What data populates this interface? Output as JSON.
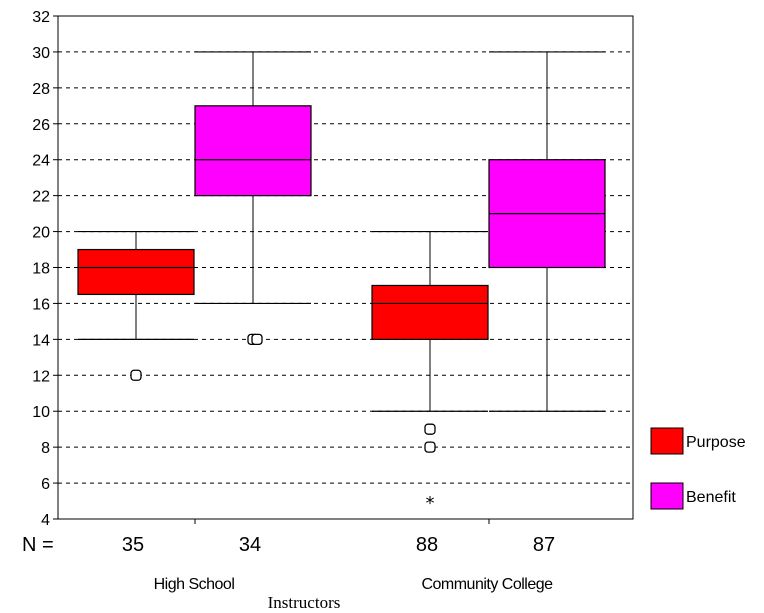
{
  "chart_data": {
    "type": "boxplot",
    "title": "",
    "xlabel": "Instructors",
    "ylabel": "",
    "ylim": [
      4,
      32
    ],
    "yticks": [
      4,
      6,
      8,
      10,
      12,
      14,
      16,
      18,
      20,
      22,
      24,
      26,
      28,
      30,
      32
    ],
    "grid": "horizontal-dashed",
    "legend_position": "right",
    "n_prefix": "N =",
    "groups": [
      {
        "label": "High School"
      },
      {
        "label": "Community College"
      }
    ],
    "series": [
      {
        "name": "Purpose",
        "color": "#ff0000"
      },
      {
        "name": "Benefit",
        "color": "#ff00ff"
      }
    ],
    "boxes": [
      {
        "group": "High School",
        "series": "Purpose",
        "n": "35",
        "whisker_low": 14,
        "q1": 16.5,
        "median": 18,
        "q3": 19,
        "whisker_high": 20,
        "outliers": [
          {
            "value": 12,
            "marker": "circle"
          }
        ]
      },
      {
        "group": "High School",
        "series": "Benefit",
        "n": "34",
        "whisker_low": 16,
        "q1": 22,
        "median": 24,
        "q3": 27,
        "whisker_high": 30,
        "outliers": [
          {
            "value": 14,
            "marker": "circle"
          },
          {
            "value": 14,
            "marker": "circle"
          }
        ]
      },
      {
        "group": "Community College",
        "series": "Purpose",
        "n": "88",
        "whisker_low": 10,
        "q1": 14,
        "median": 16,
        "q3": 17,
        "whisker_high": 20,
        "outliers": [
          {
            "value": 9,
            "marker": "circle"
          },
          {
            "value": 8,
            "marker": "circle"
          },
          {
            "value": 5,
            "marker": "star"
          }
        ]
      },
      {
        "group": "Community College",
        "series": "Benefit",
        "n": "87",
        "whisker_low": 10,
        "q1": 18,
        "median": 21,
        "q3": 24,
        "whisker_high": 30,
        "outliers": []
      }
    ]
  }
}
